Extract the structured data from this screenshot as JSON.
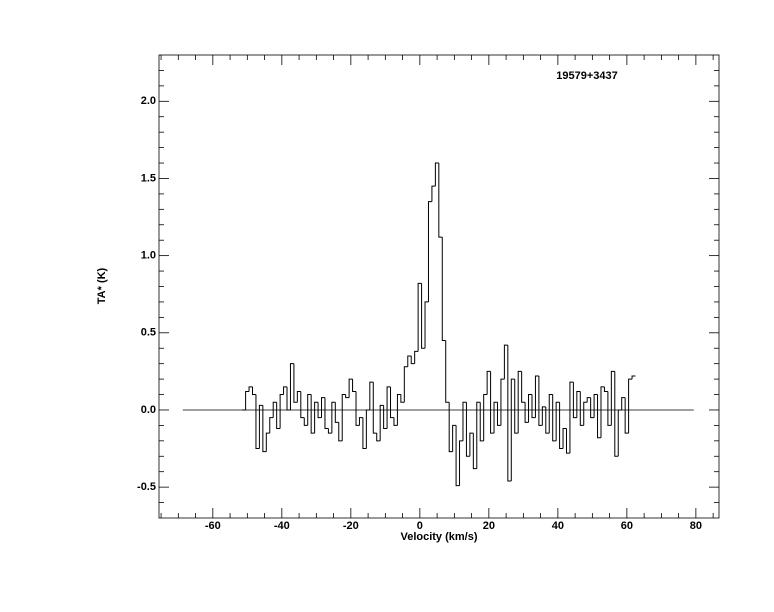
{
  "chart_data": {
    "type": "step",
    "title": "19579+3437",
    "xlabel": "Velocity (km/s)",
    "ylabel": "TA* (K)",
    "xlim": [
      -75.6,
      86.7
    ],
    "ylim": [
      -0.7,
      2.3
    ],
    "xticks": [
      -60,
      -40,
      -20,
      0,
      20,
      40,
      60,
      80
    ],
    "yticks": [
      {
        "value": -0.5,
        "label": "-0.5"
      },
      {
        "value": 0,
        "label": "0.0"
      },
      {
        "value": 0.5,
        "label": "0.5"
      },
      {
        "value": 1,
        "label": "1.0"
      },
      {
        "value": 1.5,
        "label": "1.5"
      },
      {
        "value": 2,
        "label": "2.0"
      }
    ],
    "xminorticks": [
      -75,
      -70,
      -65,
      -55,
      -50,
      -45,
      -35,
      -30,
      -25,
      -15,
      -10,
      -5,
      5,
      10,
      15,
      25,
      30,
      35,
      45,
      50,
      55,
      65,
      70,
      75,
      85
    ],
    "yminorticks": [
      -0.6,
      -0.4,
      -0.3,
      -0.2,
      -0.1,
      0.1,
      0.2,
      0.3,
      0.4,
      0.6,
      0.7,
      0.8,
      0.9,
      1.1,
      1.2,
      1.3,
      1.4,
      1.6,
      1.7,
      1.8,
      1.9,
      2.1,
      2.2
    ],
    "baseline": {
      "x": [
        -68.7,
        79.4
      ],
      "y": 0
    },
    "color": "#000000",
    "x": [
      -51,
      -50,
      -49,
      -48,
      -47,
      -46,
      -45,
      -44,
      -43,
      -42,
      -41,
      -40,
      -39,
      -38,
      -37,
      -36,
      -35,
      -34,
      -33,
      -32,
      -31,
      -30,
      -29,
      -28,
      -27,
      -26,
      -25,
      -24,
      -23,
      -22,
      -21,
      -20,
      -19,
      -18,
      -17,
      -16,
      -15,
      -14,
      -13,
      -12,
      -11,
      -10,
      -9,
      -8,
      -7,
      -6,
      -5,
      -4,
      -3,
      -2,
      -1,
      0,
      1,
      2,
      3,
      4,
      5,
      6,
      7,
      8,
      9,
      10,
      11,
      12,
      13,
      14,
      15,
      16,
      17,
      18,
      19,
      20,
      21,
      22,
      23,
      24,
      25,
      26,
      27,
      28,
      29,
      30,
      31,
      32,
      33,
      34,
      35,
      36,
      37,
      38,
      39,
      40,
      41,
      42,
      43,
      44,
      45,
      46,
      47,
      48,
      49,
      50,
      51,
      52,
      53,
      54,
      55,
      56,
      57,
      58,
      59,
      60,
      61,
      62
    ],
    "values": [
      0.0,
      0.12,
      0.15,
      0.1,
      -0.25,
      0.03,
      -0.27,
      -0.15,
      -0.05,
      0.05,
      -0.12,
      0.1,
      0.15,
      0.0,
      0.3,
      0.05,
      0.12,
      -0.05,
      -0.1,
      0.1,
      -0.15,
      0.05,
      -0.05,
      0.08,
      -0.12,
      -0.15,
      0.05,
      -0.08,
      -0.2,
      0.1,
      0.08,
      0.2,
      0.12,
      -0.1,
      -0.05,
      -0.25,
      0.0,
      0.18,
      -0.15,
      -0.2,
      0.03,
      -0.12,
      0.15,
      -0.05,
      -0.1,
      0.1,
      0.05,
      0.28,
      0.35,
      0.3,
      0.38,
      0.82,
      0.4,
      0.7,
      1.35,
      1.45,
      1.6,
      1.12,
      0.45,
      0.05,
      -0.27,
      -0.1,
      -0.49,
      -0.2,
      0.05,
      -0.3,
      -0.15,
      -0.38,
      0.05,
      -0.2,
      0.1,
      0.25,
      -0.15,
      0.05,
      -0.1,
      0.2,
      0.42,
      -0.46,
      0.2,
      -0.15,
      0.25,
      0.05,
      -0.08,
      0.1,
      -0.05,
      0.22,
      -0.1,
      0.02,
      -0.15,
      0.1,
      -0.2,
      0.05,
      -0.25,
      -0.12,
      -0.28,
      0.18,
      -0.05,
      0.12,
      -0.1,
      0.05,
      0.08,
      -0.05,
      0.1,
      -0.18,
      0.15,
      0.12,
      -0.1,
      0.25,
      -0.3,
      0.0,
      0.08,
      -0.15,
      0.2,
      0.22
    ]
  }
}
